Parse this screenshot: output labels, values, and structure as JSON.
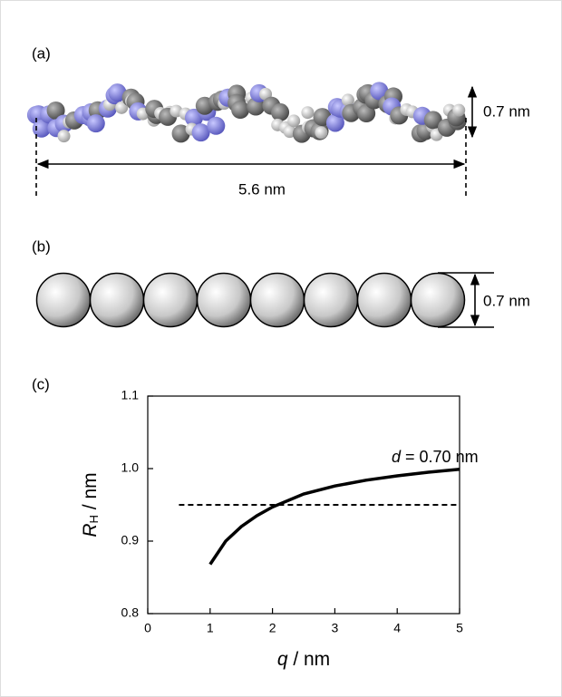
{
  "panel_a": {
    "label": "(a)",
    "height_label": "0.7 nm",
    "length_label": "5.6 nm"
  },
  "panel_b": {
    "label": "(b)",
    "height_label": "0.7 nm"
  },
  "panel_c": {
    "label": "(c)"
  },
  "chart_data": {
    "type": "line",
    "ylabel": {
      "symbol": "R",
      "subscript": "H",
      "unit": " / nm"
    },
    "xlabel": {
      "symbol": "q",
      "unit": " / nm"
    },
    "annotation": {
      "symbol": "d",
      "text": " = 0.70 nm"
    },
    "xlim": [
      0,
      5
    ],
    "xticks": [
      0,
      1,
      2,
      3,
      4,
      5
    ],
    "ylim": [
      0.8,
      1.1
    ],
    "yticks": [
      0.8,
      0.9,
      {
        "value": 1,
        "label": "1.0"
      },
      1.1
    ],
    "series": [
      {
        "color": "#000000",
        "dash": false,
        "x": [
          1,
          1.25,
          1.5,
          1.75,
          2,
          2.5,
          3,
          3.5,
          4,
          4.5,
          5
        ],
        "values": [
          0.868,
          0.9,
          0.92,
          0.935,
          0.947,
          0.965,
          0.976,
          0.984,
          0.99,
          0.995,
          0.999
        ]
      },
      {
        "color": "#000000",
        "dash": true,
        "x": [
          0.5,
          5
        ],
        "values": [
          0.95,
          0.95
        ]
      }
    ]
  }
}
